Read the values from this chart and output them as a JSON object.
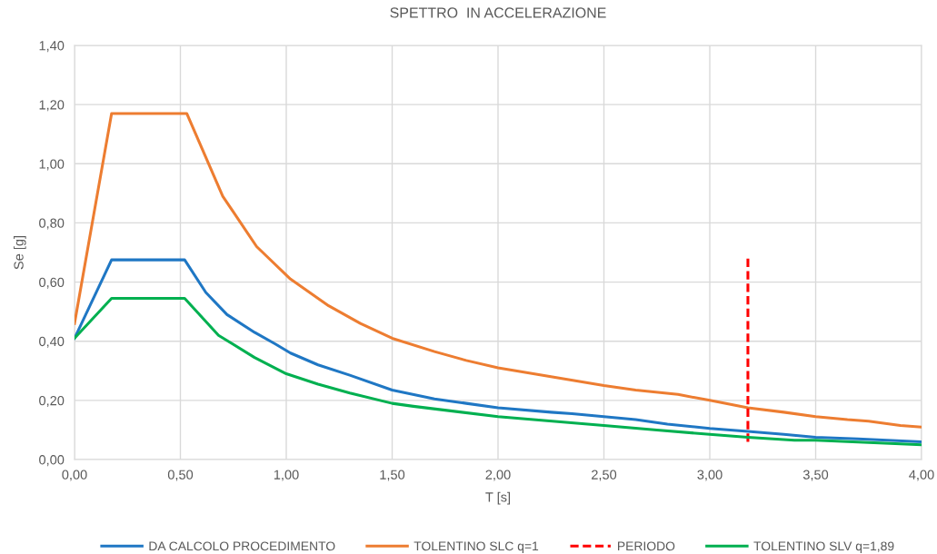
{
  "chart_data": {
    "type": "line",
    "title": "SPETTRO  IN ACCELERAZIONE",
    "xlabel": "T [s]",
    "ylabel": "Se [g]",
    "xlim": [
      0,
      4
    ],
    "ylim": [
      0,
      1.4
    ],
    "xticks": [
      {
        "value": 0,
        "label": "0,00"
      },
      {
        "value": 0.5,
        "label": "0,50"
      },
      {
        "value": 1,
        "label": "1,00"
      },
      {
        "value": 1.5,
        "label": "1,50"
      },
      {
        "value": 2,
        "label": "2,00"
      },
      {
        "value": 2.5,
        "label": "2,50"
      },
      {
        "value": 3,
        "label": "3,00"
      },
      {
        "value": 3.5,
        "label": "3,50"
      },
      {
        "value": 4,
        "label": "4,00"
      }
    ],
    "yticks": [
      {
        "value": 0,
        "label": "0,00"
      },
      {
        "value": 0.2,
        "label": "0,20"
      },
      {
        "value": 0.4,
        "label": "0,40"
      },
      {
        "value": 0.6,
        "label": "0,60"
      },
      {
        "value": 0.8,
        "label": "0,80"
      },
      {
        "value": 1.0,
        "label": "1,00"
      },
      {
        "value": 1.2,
        "label": "1,20"
      },
      {
        "value": 1.4,
        "label": "1,40"
      }
    ],
    "grid": true,
    "legend": "bottom",
    "series": [
      {
        "name": "DA CALCOLO PROCEDIMENTO",
        "color": "#1f77c4",
        "x": [
          0,
          0.175,
          0.52,
          0.62,
          0.72,
          0.85,
          0.95,
          1.02,
          1.15,
          1.3,
          1.5,
          1.7,
          1.85,
          2.0,
          2.25,
          2.35,
          2.5,
          2.65,
          2.8,
          3.0,
          3.18,
          3.35,
          3.5,
          3.7,
          4.0
        ],
        "values": [
          0.41,
          0.675,
          0.675,
          0.565,
          0.49,
          0.43,
          0.39,
          0.36,
          0.32,
          0.285,
          0.235,
          0.205,
          0.19,
          0.175,
          0.16,
          0.155,
          0.145,
          0.135,
          0.12,
          0.105,
          0.095,
          0.085,
          0.075,
          0.07,
          0.06
        ]
      },
      {
        "name": "TOLENTINO SLC q=1",
        "color": "#ed7d31",
        "x": [
          0,
          0.175,
          0.53,
          0.7,
          0.86,
          1.02,
          1.2,
          1.35,
          1.5,
          1.7,
          1.85,
          2.0,
          2.25,
          2.5,
          2.65,
          2.85,
          3.0,
          3.18,
          3.35,
          3.5,
          3.65,
          3.75,
          3.9,
          4.0
        ],
        "values": [
          0.46,
          1.17,
          1.17,
          0.89,
          0.72,
          0.61,
          0.52,
          0.46,
          0.41,
          0.365,
          0.335,
          0.31,
          0.28,
          0.25,
          0.235,
          0.22,
          0.2,
          0.175,
          0.16,
          0.145,
          0.135,
          0.13,
          0.115,
          0.11
        ]
      },
      {
        "name": "PERIODO",
        "color": "#ff0000",
        "line_style": "dashed",
        "x": [
          3.18,
          3.18
        ],
        "values": [
          0.06,
          0.68
        ]
      },
      {
        "name": "TOLENTINO SLV q=1,89",
        "color": "#00b050",
        "x": [
          0,
          0.175,
          0.52,
          0.68,
          0.85,
          1.0,
          1.15,
          1.3,
          1.5,
          1.6,
          2.0,
          2.5,
          2.75,
          3.0,
          3.18,
          3.4,
          3.5,
          4.0
        ],
        "values": [
          0.41,
          0.545,
          0.545,
          0.42,
          0.345,
          0.29,
          0.255,
          0.225,
          0.19,
          0.18,
          0.145,
          0.115,
          0.1,
          0.085,
          0.075,
          0.065,
          0.065,
          0.05
        ]
      }
    ]
  }
}
